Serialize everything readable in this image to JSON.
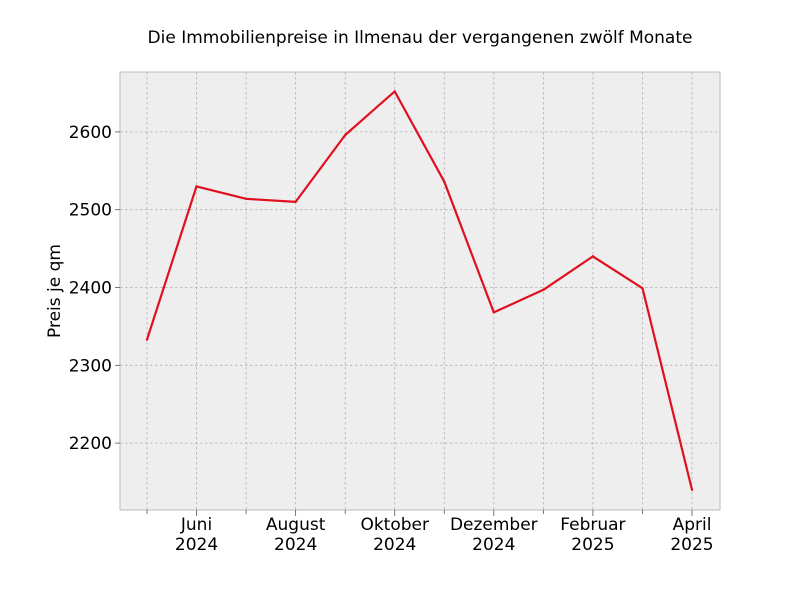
{
  "chart_data": {
    "type": "line",
    "title": "Die Immobilienpreise in Ilmenau der vergangenen zwölf Monate",
    "xlabel": "",
    "ylabel": "Preis je qm",
    "x": [
      "2024-05",
      "2024-06",
      "2024-07",
      "2024-08",
      "2024-09",
      "2024-10",
      "2024-11",
      "2024-12",
      "2025-01",
      "2025-02",
      "2025-03",
      "2025-04"
    ],
    "x_tick_labels": [
      {
        "x": "2024-06",
        "month": "Juni",
        "year": "2024"
      },
      {
        "x": "2024-08",
        "month": "August",
        "year": "2024"
      },
      {
        "x": "2024-10",
        "month": "Oktober",
        "year": "2024"
      },
      {
        "x": "2024-12",
        "month": "Dezember",
        "year": "2024"
      },
      {
        "x": "2025-02",
        "month": "Februar",
        "year": "2025"
      },
      {
        "x": "2025-04",
        "month": "April",
        "year": "2025"
      }
    ],
    "minor_ticks": [
      "2024-05",
      "2024-07",
      "2024-09",
      "2024-11",
      "2025-01",
      "2025-03"
    ],
    "y_ticks": [
      2200,
      2300,
      2400,
      2500,
      2600
    ],
    "series": [
      {
        "values": [
          2333,
          2530,
          2514,
          2510,
          2596,
          2652,
          2536,
          2368,
          2397,
          2440,
          2399,
          2140
        ],
        "color": "#e0101f"
      }
    ],
    "ylim": [
      2114,
      2677
    ],
    "grid": true,
    "background": "#eeeeee",
    "legend": "none"
  }
}
